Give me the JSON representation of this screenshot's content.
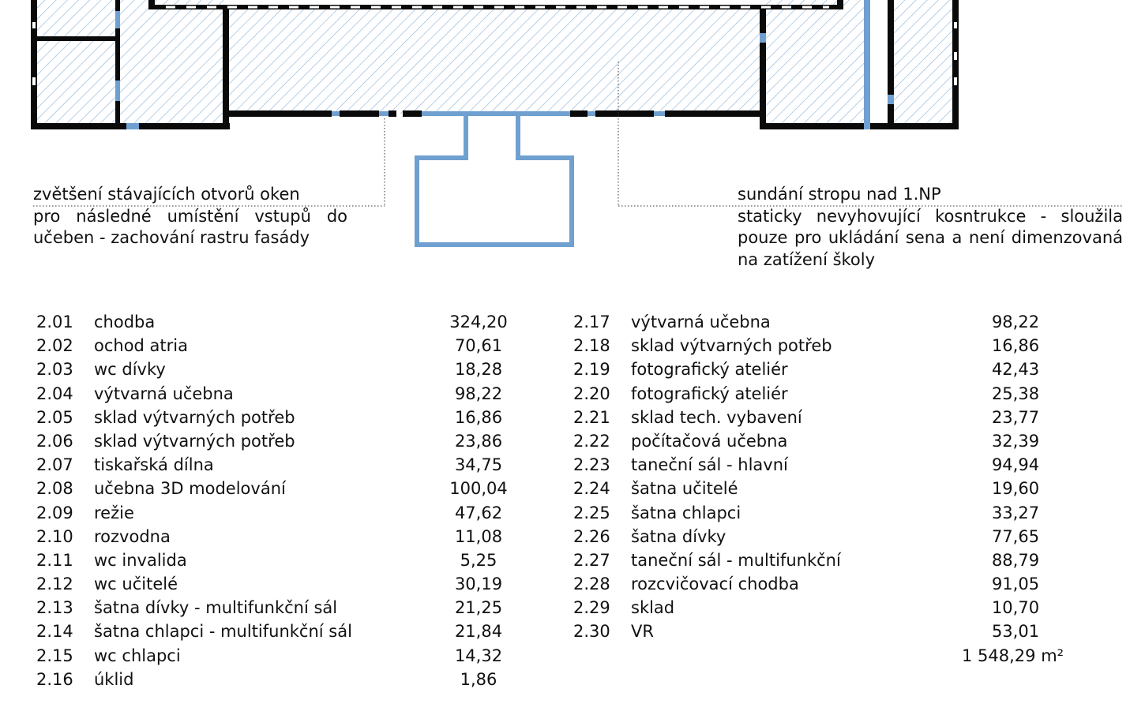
{
  "annotations": {
    "left": [
      "zvětšení stávajících otvorů oken",
      "pro následné umístění vstupů do",
      "učeben - zachování rastru fasády"
    ],
    "right": [
      "sundání stropu nad 1.NP",
      "staticky nevyhovující kosntrukce - sloužila",
      "pouze pro ukládání sena a není dimenzovaná",
      "na zatížení školy"
    ]
  },
  "colors": {
    "wall": "#0a0a0a",
    "hatch": "#8fb6dd",
    "accent_blue": "#6fa0d0"
  },
  "rooms_left": [
    {
      "num": "2.01",
      "name": "chodba",
      "area": "324,20"
    },
    {
      "num": "2.02",
      "name": "ochod atria",
      "area": "70,61"
    },
    {
      "num": "2.03",
      "name": "wc dívky",
      "area": "18,28"
    },
    {
      "num": "2.04",
      "name": "výtvarná učebna",
      "area": "98,22"
    },
    {
      "num": "2.05",
      "name": "sklad výtvarných potřeb",
      "area": "16,86"
    },
    {
      "num": "2.06",
      "name": "sklad výtvarných potřeb",
      "area": "23,86"
    },
    {
      "num": "2.07",
      "name": "tiskařská dílna",
      "area": "34,75"
    },
    {
      "num": "2.08",
      "name": "učebna 3D modelování",
      "area": "100,04"
    },
    {
      "num": "2.09",
      "name": "režie",
      "area": "47,62"
    },
    {
      "num": "2.10",
      "name": "rozvodna",
      "area": "11,08"
    },
    {
      "num": "2.11",
      "name": "wc invalida",
      "area": "5,25"
    },
    {
      "num": "2.12",
      "name": "wc učitelé",
      "area": "30,19"
    },
    {
      "num": "2.13",
      "name": "šatna dívky - multifunkční sál",
      "area": "21,25"
    },
    {
      "num": "2.14",
      "name": "šatna chlapci - multifunkční sál",
      "area": "21,84"
    },
    {
      "num": "2.15",
      "name": "wc chlapci",
      "area": "14,32"
    },
    {
      "num": "2.16",
      "name": "úklid",
      "area": "1,86"
    }
  ],
  "rooms_right": [
    {
      "num": "2.17",
      "name": "výtvarná učebna",
      "area": "98,22"
    },
    {
      "num": "2.18",
      "name": "sklad výtvarných potřeb",
      "area": "16,86"
    },
    {
      "num": "2.19",
      "name": "fotografický ateliér",
      "area": "42,43"
    },
    {
      "num": "2.20",
      "name": "fotografický ateliér",
      "area": "25,38"
    },
    {
      "num": "2.21",
      "name": "sklad tech. vybavení",
      "area": "23,77"
    },
    {
      "num": "2.22",
      "name": "počítačová učebna",
      "area": "32,39"
    },
    {
      "num": "2.23",
      "name": "taneční sál - hlavní",
      "area": "94,94"
    },
    {
      "num": "2.24",
      "name": "šatna učitelé",
      "area": "19,60"
    },
    {
      "num": "2.25",
      "name": "šatna chlapci",
      "area": "33,27"
    },
    {
      "num": "2.26",
      "name": "šatna dívky",
      "area": "77,65"
    },
    {
      "num": "2.27",
      "name": "taneční sál - multifunkční",
      "area": "88,79"
    },
    {
      "num": "2.28",
      "name": "rozcvičovací chodba",
      "area": "91,05"
    },
    {
      "num": "2.29",
      "name": "sklad",
      "area": "10,70"
    },
    {
      "num": "2.30",
      "name": "VR",
      "area": "53,01"
    }
  ],
  "total": "1 548,29 m²"
}
